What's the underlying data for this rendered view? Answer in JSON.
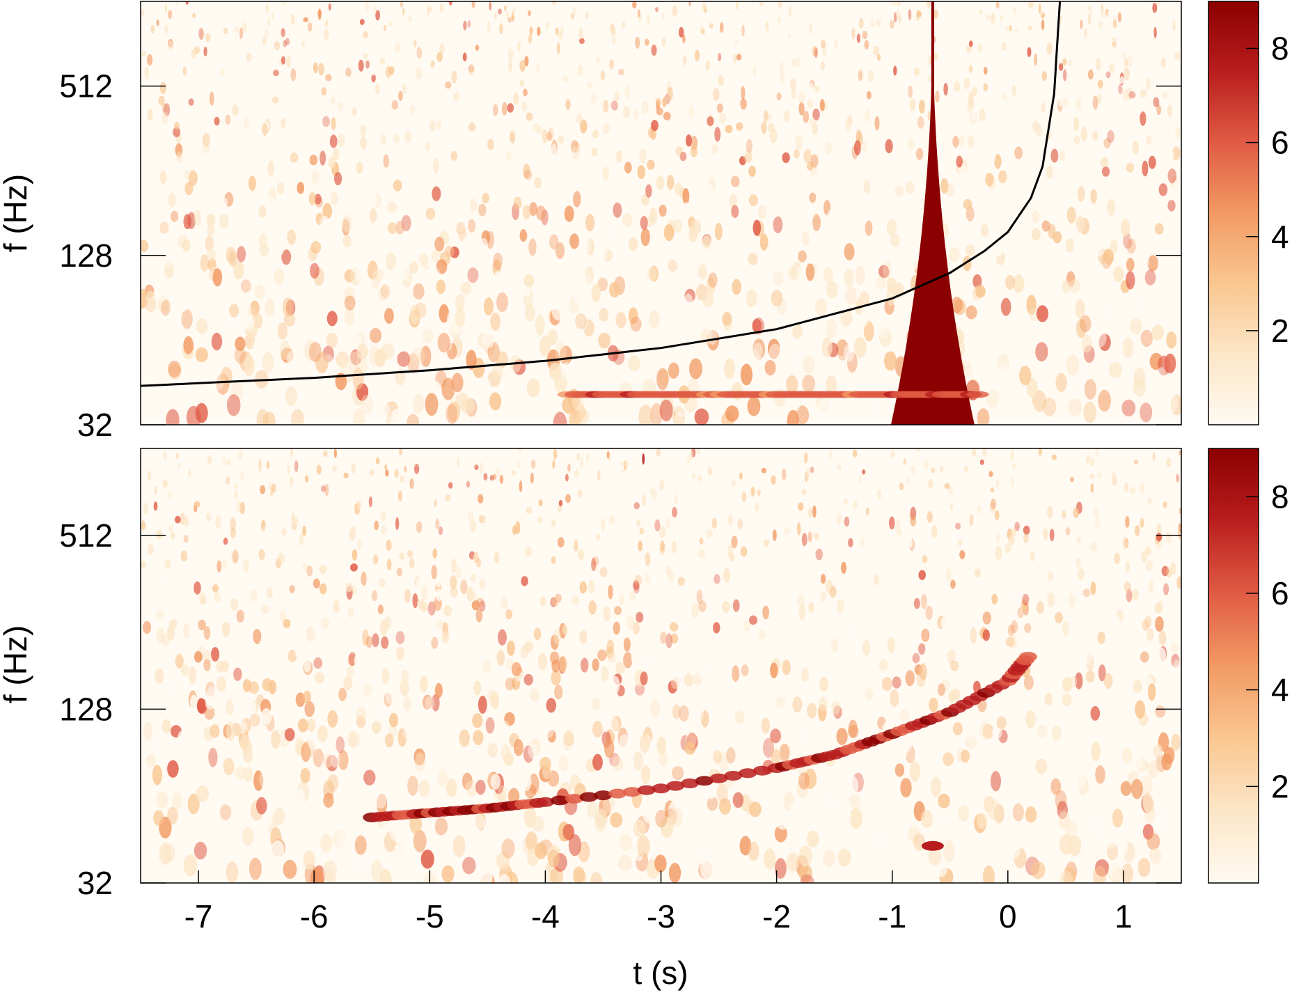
{
  "chart_data": [
    {
      "type": "heatmap",
      "panel": "top",
      "xlabel": "",
      "ylabel": "f (Hz)",
      "xlim": [
        -7.5,
        1.5
      ],
      "y_scale": "log2",
      "ylim": [
        32,
        1024
      ],
      "y_ticks": [
        32,
        128,
        512
      ],
      "y_tick_labels": [
        "32",
        "128",
        "512"
      ],
      "colorbar": {
        "min": 0,
        "max": 9,
        "ticks": [
          2,
          4,
          6,
          8
        ],
        "tick_labels": [
          "2",
          "4",
          "6",
          "8"
        ]
      },
      "colormap": [
        "#fffaf2",
        "#fce6c6",
        "#f9c58f",
        "#f29a63",
        "#e05a44",
        "#b81c1c",
        "#8b0000"
      ],
      "overlay_curve": {
        "color": "#000000",
        "t": [
          -7.5,
          -6,
          -5,
          -4,
          -3,
          -2,
          -1,
          -0.5,
          -0.2,
          0,
          0.2,
          0.3,
          0.4,
          0.45
        ],
        "f": [
          44,
          47,
          50,
          54,
          60,
          70,
          90,
          111,
          133,
          155,
          205,
          265,
          480,
          1024
        ]
      },
      "features": [
        {
          "kind": "glitch",
          "t_center": -0.65,
          "f_range": [
            32,
            1024
          ],
          "level": 9
        },
        {
          "kind": "horizontal_line",
          "t_range": [
            -3.8,
            -0.2
          ],
          "f": 41,
          "level": 7
        }
      ]
    },
    {
      "type": "heatmap",
      "panel": "bottom",
      "xlabel": "t (s)",
      "ylabel": "f (Hz)",
      "xlim": [
        -7.5,
        1.5
      ],
      "x_ticks": [
        -7,
        -6,
        -5,
        -4,
        -3,
        -2,
        -1,
        0,
        1
      ],
      "x_tick_labels": [
        "-7",
        "-6",
        "-5",
        "-4",
        "-3",
        "-2",
        "-1",
        "0",
        "1"
      ],
      "y_scale": "log2",
      "ylim": [
        32,
        1024
      ],
      "y_ticks": [
        32,
        128,
        512
      ],
      "y_tick_labels": [
        "32",
        "128",
        "512"
      ],
      "colorbar": {
        "min": 0,
        "max": 9,
        "ticks": [
          2,
          4,
          6,
          8
        ],
        "tick_labels": [
          "2",
          "4",
          "6",
          "8"
        ]
      },
      "colormap": [
        "#fffaf2",
        "#fce6c6",
        "#f9c58f",
        "#f29a63",
        "#e05a44",
        "#b81c1c",
        "#8b0000"
      ],
      "chirp_track": {
        "t": [
          -5.5,
          -5,
          -4.5,
          -4,
          -3,
          -2,
          -1.5,
          -1,
          -0.5,
          0,
          0.2
        ],
        "f": [
          54,
          56,
          58,
          61,
          68,
          80,
          89,
          105,
          125,
          160,
          200
        ]
      },
      "features": [
        {
          "kind": "spot",
          "t": -0.65,
          "f": 43,
          "level": 8
        }
      ]
    }
  ]
}
